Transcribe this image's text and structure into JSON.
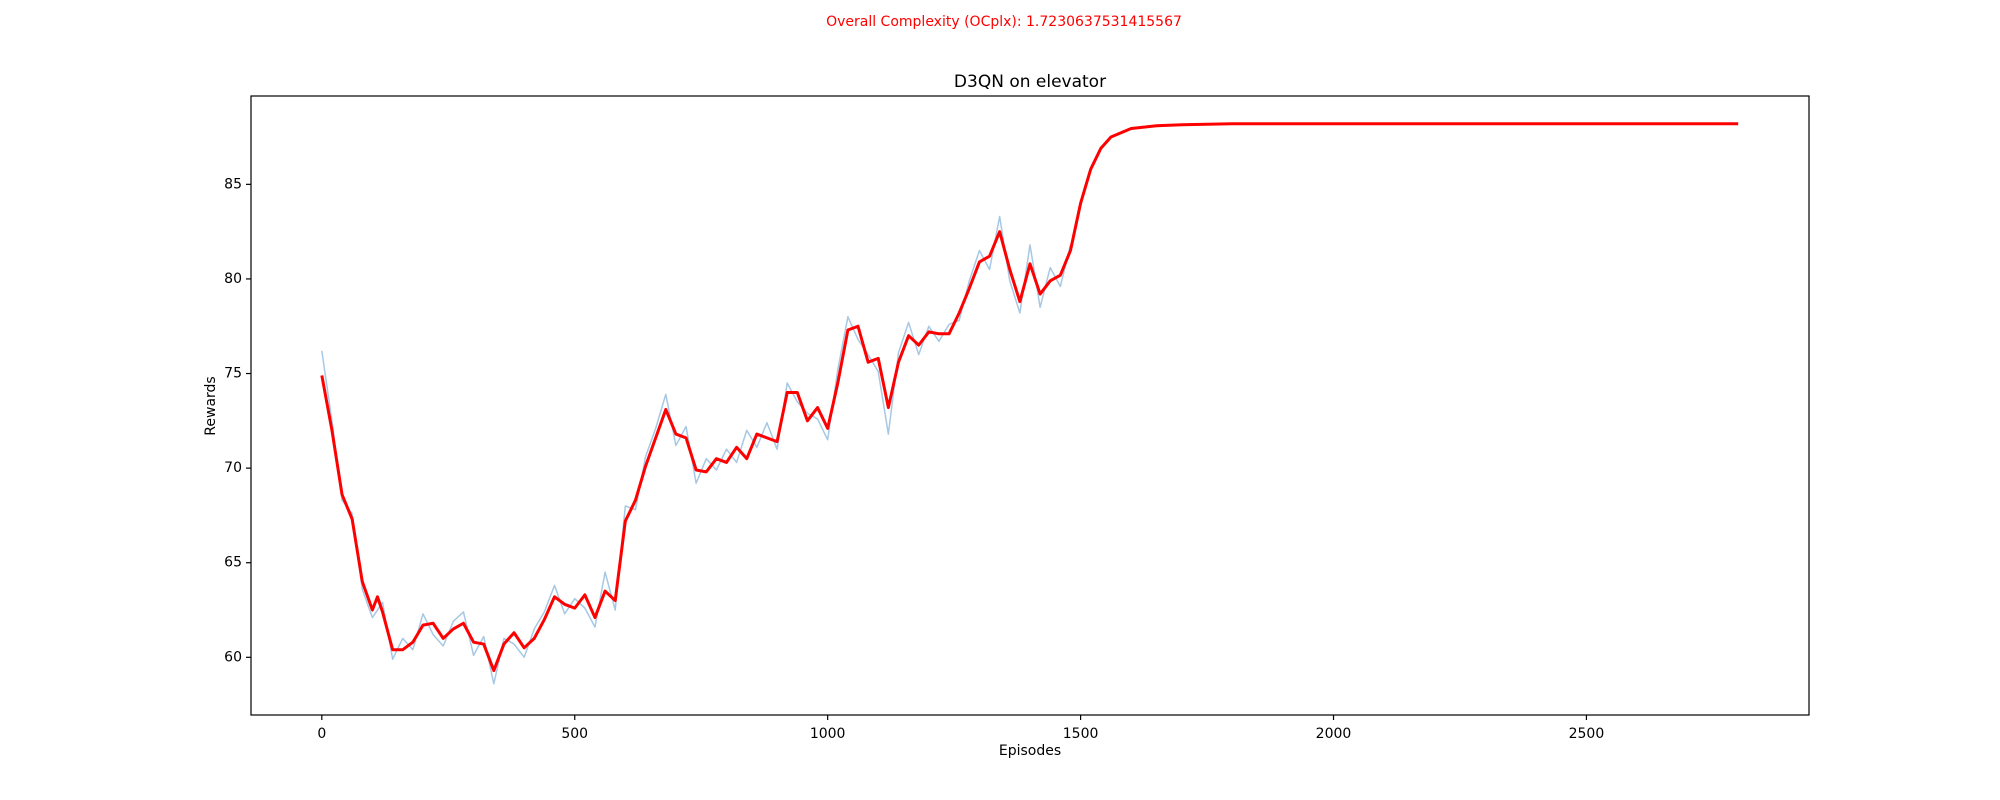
{
  "suptitle": "Overall Complexity (OCplx): 1.7230637531415567",
  "suptitle_color": "#ff0000",
  "chart_data": {
    "type": "line",
    "title": "D3QN on elevator",
    "xlabel": "Episodes",
    "ylabel": "Rewards",
    "xlim": [
      -140,
      2940
    ],
    "ylim": [
      56.95,
      89.67
    ],
    "xticks": [
      0,
      500,
      1000,
      1500,
      2000,
      2500
    ],
    "yticks": [
      60,
      65,
      70,
      75,
      80,
      85
    ],
    "grid": false,
    "series": [
      {
        "color": "#a6c8e4",
        "width": 1.5,
        "x": [
          0,
          20,
          40,
          60,
          80,
          100,
          120,
          140,
          160,
          180,
          200,
          220,
          240,
          260,
          280,
          300,
          320,
          340,
          360,
          380,
          400,
          420,
          440,
          460,
          480,
          500,
          520,
          540,
          560,
          580,
          600,
          620,
          640,
          660,
          680,
          700,
          720,
          740,
          760,
          780,
          800,
          820,
          840,
          860,
          880,
          900,
          920,
          940,
          960,
          980,
          1000,
          1020,
          1040,
          1060,
          1080,
          1100,
          1120,
          1140,
          1160,
          1180,
          1200,
          1220,
          1240,
          1260,
          1280,
          1300,
          1320,
          1340,
          1360,
          1380,
          1400,
          1420,
          1440,
          1460,
          1480
        ],
        "values": [
          76.2,
          72.5,
          68.3,
          67.6,
          63.6,
          62.1,
          62.9,
          59.9,
          61.0,
          60.4,
          62.3,
          61.2,
          60.6,
          61.9,
          62.4,
          60.1,
          61.1,
          58.6,
          61.0,
          60.7,
          60.0,
          61.5,
          62.4,
          63.8,
          62.3,
          63.1,
          62.6,
          61.6,
          64.5,
          62.5,
          68.0,
          67.8,
          70.6,
          72.1,
          73.9,
          71.2,
          72.2,
          69.2,
          70.5,
          69.9,
          71.0,
          70.3,
          72.0,
          71.1,
          72.4,
          71.0,
          74.5,
          73.5,
          72.9,
          72.6,
          71.5,
          75.2,
          78.0,
          76.8,
          76.0,
          75.1,
          71.8,
          76.1,
          77.7,
          76.0,
          77.5,
          76.7,
          77.6,
          77.8,
          79.9,
          81.5,
          80.5,
          83.3,
          79.9,
          78.2,
          81.8,
          78.5,
          80.6,
          79.6,
          81.8
        ]
      },
      {
        "color": "#ff0000",
        "width": 3,
        "x": [
          0,
          20,
          40,
          60,
          80,
          100,
          110,
          120,
          140,
          160,
          180,
          200,
          220,
          240,
          260,
          280,
          300,
          320,
          340,
          360,
          380,
          400,
          420,
          440,
          460,
          480,
          500,
          520,
          540,
          560,
          580,
          600,
          620,
          640,
          660,
          680,
          700,
          720,
          740,
          760,
          780,
          800,
          820,
          840,
          860,
          880,
          900,
          920,
          940,
          960,
          980,
          1000,
          1020,
          1040,
          1060,
          1080,
          1100,
          1120,
          1140,
          1160,
          1180,
          1200,
          1220,
          1240,
          1260,
          1280,
          1300,
          1320,
          1340,
          1360,
          1380,
          1400,
          1420,
          1440,
          1460,
          1480,
          1500,
          1520,
          1540,
          1560,
          1600,
          1650,
          1700,
          1800,
          2000,
          2400,
          2800
        ],
        "values": [
          74.9,
          72,
          68.6,
          67.3,
          64,
          62.5,
          63.2,
          62.4,
          60.4,
          60.4,
          60.8,
          61.7,
          61.8,
          61,
          61.5,
          61.8,
          60.8,
          60.7,
          59.3,
          60.7,
          61.3,
          60.5,
          61,
          62,
          63.2,
          62.8,
          62.6,
          63.3,
          62.1,
          63.5,
          63,
          67.2,
          68.3,
          70.1,
          71.6,
          73.1,
          71.8,
          71.6,
          69.9,
          69.8,
          70.5,
          70.3,
          71.1,
          70.5,
          71.8,
          71.6,
          71.4,
          74,
          74,
          72.5,
          73.2,
          72.1,
          74.5,
          77.3,
          77.5,
          75.6,
          75.8,
          73.2,
          75.6,
          77,
          76.5,
          77.2,
          77.1,
          77.1,
          78.2,
          79.5,
          80.9,
          81.2,
          82.5,
          80.5,
          78.8,
          80.8,
          79.2,
          79.9,
          80.2,
          81.5,
          84,
          85.8,
          86.9,
          87.5,
          87.95,
          88.1,
          88.15,
          88.2,
          88.2,
          88.2,
          88.2
        ]
      }
    ]
  }
}
